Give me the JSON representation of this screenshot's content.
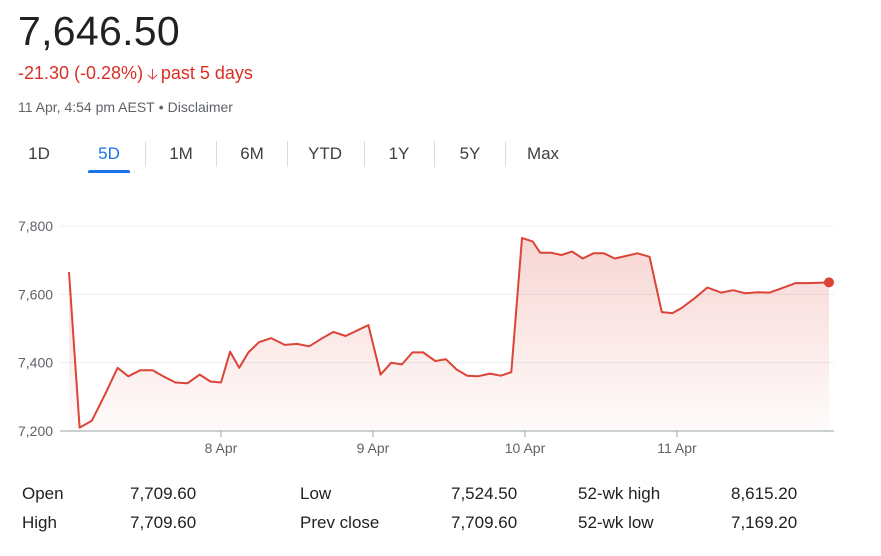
{
  "quote": {
    "price": "7,646.50",
    "change": "-21.30 (-0.28%)",
    "period": "past 5 days",
    "timestamp": "11 Apr, 4:54 pm AEST",
    "separator": "•",
    "disclaimer": "Disclaimer"
  },
  "tabs": [
    {
      "label": "1D",
      "active": false
    },
    {
      "label": "5D",
      "active": true
    },
    {
      "label": "1M",
      "active": false
    },
    {
      "label": "6M",
      "active": false
    },
    {
      "label": "YTD",
      "active": false
    },
    {
      "label": "1Y",
      "active": false
    },
    {
      "label": "5Y",
      "active": false
    },
    {
      "label": "Max",
      "active": false
    }
  ],
  "colors": {
    "line": "#db4437",
    "negative": "#d93025",
    "accent": "#1a73e8",
    "grid": "#eceff1"
  },
  "chart_data": {
    "type": "area",
    "ylim": [
      7200,
      7800
    ],
    "y_ticks": [
      "7,800",
      "7,600",
      "7,400",
      "7,200"
    ],
    "y_tick_values": [
      7800,
      7600,
      7400,
      7200
    ],
    "x_ticks": [
      "8 Apr",
      "9 Apr",
      "10 Apr",
      "11 Apr"
    ],
    "x_tick_positions": [
      3,
      4,
      5,
      6
    ],
    "xlim": [
      2,
      7
    ],
    "grid": true,
    "series": [
      {
        "x": [
          2.0,
          2.07,
          2.15,
          2.24,
          2.32,
          2.39,
          2.47,
          2.55,
          2.62,
          2.7,
          2.78,
          2.86,
          2.93,
          3.0,
          3.06,
          3.12,
          3.18,
          3.25,
          3.33,
          3.42,
          3.5,
          3.58,
          3.66,
          3.74,
          3.82,
          3.9,
          3.97,
          4.05,
          4.12,
          4.19,
          4.26,
          4.33,
          4.41,
          4.48,
          4.55,
          4.62,
          4.69,
          4.77,
          4.84,
          4.91,
          4.98,
          5.05,
          5.1,
          5.17,
          5.24,
          5.31,
          5.38,
          5.45,
          5.52,
          5.59,
          5.66,
          5.74,
          5.82,
          5.9,
          5.97,
          6.03,
          6.12,
          6.2,
          6.29,
          6.37,
          6.45,
          6.53,
          6.61,
          6.69,
          6.78,
          6.86,
          6.94,
          7.0
        ],
        "values": [
          7665,
          7210,
          7230,
          7310,
          7385,
          7360,
          7378,
          7378,
          7360,
          7342,
          7340,
          7365,
          7345,
          7342,
          7432,
          7385,
          7430,
          7460,
          7472,
          7452,
          7455,
          7448,
          7470,
          7490,
          7478,
          7495,
          7510,
          7365,
          7400,
          7395,
          7430,
          7430,
          7405,
          7410,
          7380,
          7362,
          7360,
          7368,
          7362,
          7372,
          7765,
          7755,
          7722,
          7722,
          7715,
          7725,
          7705,
          7720,
          7720,
          7705,
          7712,
          7720,
          7710,
          7548,
          7545,
          7560,
          7590,
          7620,
          7605,
          7612,
          7603,
          7606,
          7605,
          7618,
          7633,
          7633,
          7634,
          7635
        ]
      }
    ]
  },
  "stats": {
    "rows": [
      [
        {
          "label": "Open",
          "value": "7,709.60"
        },
        {
          "label": "Low",
          "value": "7,524.50"
        },
        {
          "label": "52-wk high",
          "value": "8,615.20"
        }
      ],
      [
        {
          "label": "High",
          "value": "7,709.60"
        },
        {
          "label": "Prev close",
          "value": "7,709.60"
        },
        {
          "label": "52-wk low",
          "value": "7,169.20"
        }
      ]
    ]
  }
}
